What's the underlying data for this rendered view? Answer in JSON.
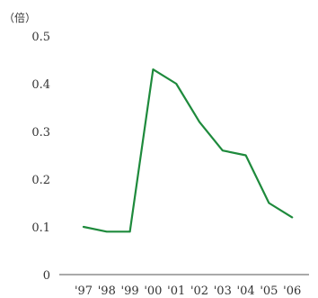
{
  "chart_data": {
    "type": "line",
    "unit_label": "（倍）",
    "categories": [
      "'97",
      "'98",
      "'99",
      "'00",
      "'01",
      "'02",
      "'03",
      "'04",
      "'05",
      "'06"
    ],
    "series": [
      {
        "values": [
          0.1,
          0.09,
          0.09,
          0.43,
          0.4,
          0.32,
          0.26,
          0.25,
          0.15,
          0.12
        ]
      }
    ],
    "ylim": [
      0,
      0.5
    ],
    "yticks": [
      0,
      0.1,
      0.2,
      0.3,
      0.4,
      0.5
    ],
    "ytick_labels": [
      "0",
      "0.1",
      "0.2",
      "0.3",
      "0.4",
      "0.5"
    ],
    "grid": false,
    "legend": "none",
    "colors": {
      "line": "#1e8a3c",
      "text": "#333333",
      "axis": "#555555"
    }
  }
}
